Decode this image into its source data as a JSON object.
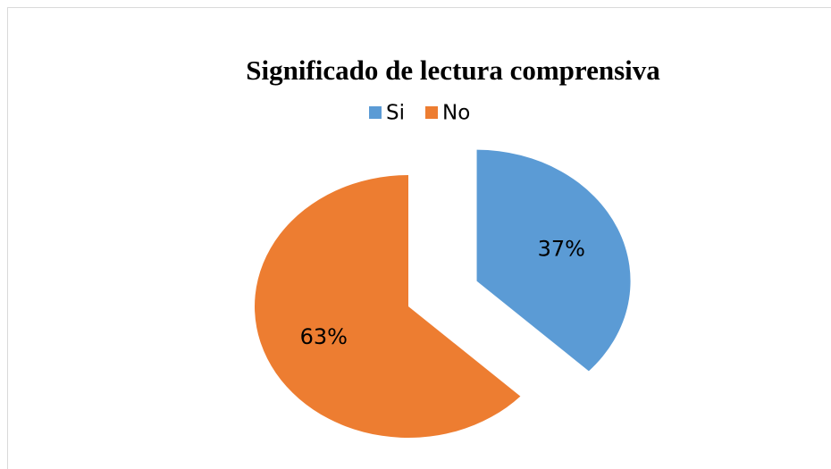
{
  "chart_data": {
    "type": "pie",
    "title": "Significado de lectura comprensiva",
    "categories": [
      "Si",
      "No"
    ],
    "values": [
      37,
      63
    ],
    "value_labels": [
      "37%",
      "63%"
    ],
    "colors": [
      "#5b9bd5",
      "#ed7d31"
    ],
    "exploded": [
      true,
      false
    ],
    "legend": "top"
  }
}
